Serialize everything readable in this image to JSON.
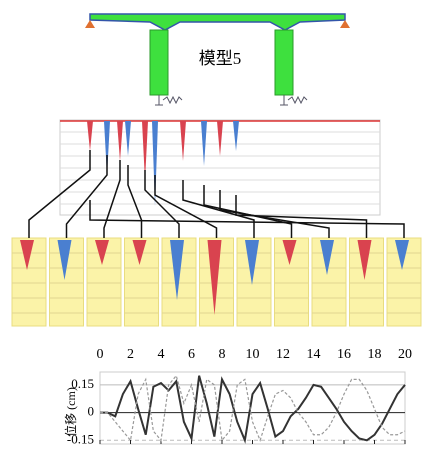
{
  "model_label": "模型5",
  "chart_data": {
    "type": "line",
    "y_label": "位移 (cm)",
    "x": [
      0,
      0.5,
      1,
      1.5,
      2,
      2.5,
      3,
      3.5,
      4,
      4.5,
      5,
      5.5,
      6,
      6.5,
      7,
      7.5,
      8,
      8.5,
      9,
      9.5,
      10,
      10.5,
      11,
      11.5,
      12,
      12.5,
      13,
      13.5,
      14,
      14.5,
      15,
      15.5,
      16,
      16.5,
      17,
      17.5,
      18,
      18.5,
      19,
      19.5,
      20
    ],
    "series": [
      {
        "color": "#333333",
        "style": "solid",
        "values": [
          0,
          0,
          -0.02,
          0.1,
          0.17,
          0.02,
          -0.12,
          0.14,
          0.16,
          0.12,
          0.17,
          -0.05,
          -0.14,
          0.2,
          0.05,
          -0.13,
          0.18,
          0.1,
          -0.05,
          -0.15,
          0.1,
          0.16,
          0.02,
          -0.13,
          -0.1,
          -0.02,
          0.02,
          0.08,
          0.15,
          0.14,
          0.08,
          0.02,
          -0.05,
          -0.1,
          -0.14,
          -0.15,
          -0.12,
          -0.06,
          0.02,
          0.1,
          0.15
        ]
      },
      {
        "color": "#999999",
        "style": "dashed",
        "values": [
          0,
          0,
          -0.05,
          -0.1,
          -0.15,
          0.1,
          0.18,
          -0.1,
          -0.15,
          0.15,
          0.2,
          0.05,
          0.15,
          -0.05,
          0.18,
          0.15,
          -0.15,
          -0.1,
          0.15,
          0.18,
          -0.05,
          -0.15,
          -0.02,
          0.1,
          0.12,
          0.08,
          0,
          -0.05,
          -0.12,
          -0.12,
          -0.08,
          0,
          0.1,
          0.18,
          0.18,
          0.12,
          0.02,
          -0.08,
          -0.12,
          -0.12,
          -0.1
        ]
      }
    ],
    "xlim": [
      0,
      20
    ],
    "xticks": [
      0,
      2,
      4,
      6,
      8,
      10,
      12,
      14,
      16,
      18,
      20
    ],
    "ylim": [
      -0.17,
      0.22
    ],
    "yticks": [
      -0.15,
      0,
      0.15
    ],
    "grid": true
  }
}
